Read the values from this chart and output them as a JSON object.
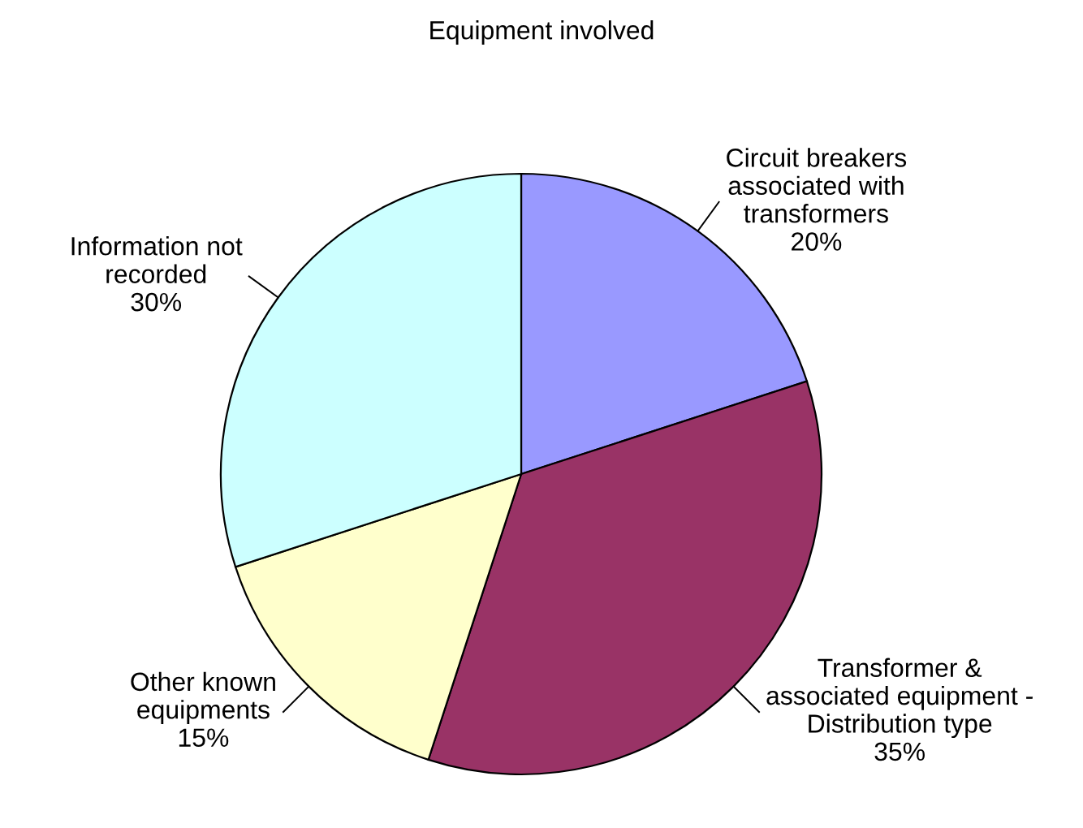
{
  "chart_data": {
    "type": "pie",
    "title": "Equipment involved",
    "categories": [
      "Circuit breakers\nassociated with\ntransformers",
      "Transformer &\nassociated equipment -\nDistribution type",
      "Other known\nequipments",
      "Information not\nrecorded"
    ],
    "values": [
      20,
      35,
      15,
      30
    ],
    "value_labels": [
      "20%",
      "35%",
      "15%",
      "30%"
    ],
    "colors": [
      "#9999ff",
      "#993366",
      "#ffffcc",
      "#ccffff"
    ],
    "legend": false
  }
}
